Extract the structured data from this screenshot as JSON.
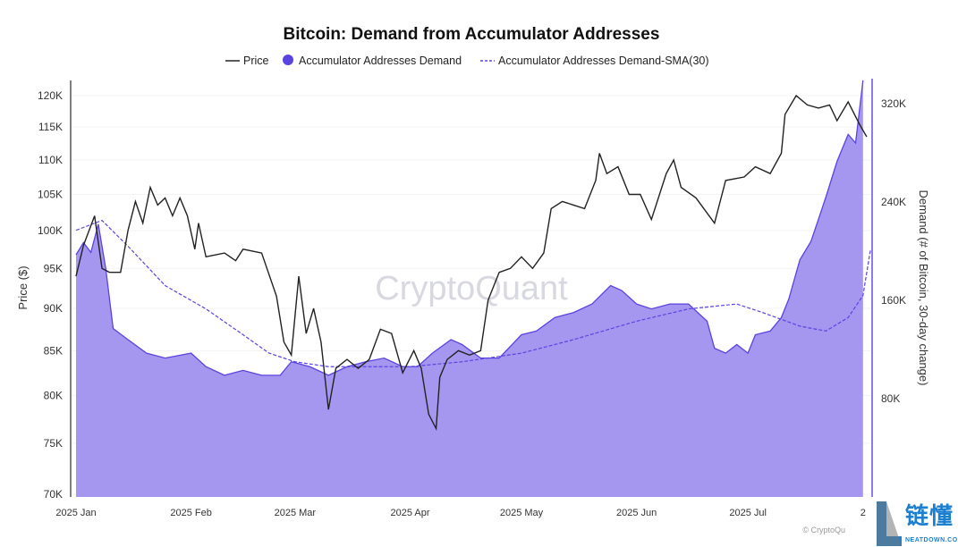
{
  "chart_data": {
    "type": "line",
    "title": "Bitcoin: Demand from Accumulator Addresses",
    "legend": [
      "Price",
      "Accumulator Addresses Demand",
      "Accumulator Addresses Demand-SMA(30)"
    ],
    "legend_position": "top",
    "ylabel_left": "Price ($)",
    "ylabel_right": "Demand (# of Bitcoin, 30-day change)",
    "y_left_scale": "log",
    "y_left_range": [
      70000,
      125000
    ],
    "y_left_ticks": [
      "120K",
      "115K",
      "110K",
      "105K",
      "100K",
      "95K",
      "90K",
      "85K",
      "80K",
      "75K",
      "70K"
    ],
    "y_left_tick_values": [
      120000,
      115000,
      110000,
      105000,
      100000,
      95000,
      90000,
      85000,
      80000,
      75000,
      70000
    ],
    "y_right_range": [
      0,
      340000
    ],
    "y_right_ticks": [
      "320K",
      "240K",
      "160K",
      "80K"
    ],
    "y_right_tick_values": [
      320000,
      240000,
      160000,
      80000
    ],
    "x_ticks": [
      "2025 Jan",
      "2025 Feb",
      "2025 Mar",
      "2025 Apr",
      "2025 May",
      "2025 Jun",
      "2025 Jul",
      "2"
    ],
    "x_tick_dates": [
      "2025-01-01",
      "2025-02-01",
      "2025-03-01",
      "2025-04-01",
      "2025-05-01",
      "2025-06-01",
      "2025-07-01",
      "2025-08-01"
    ],
    "colors": {
      "price": "#222222",
      "demand_fill": "#a597ef",
      "demand_line": "#5a44e0",
      "sma": "#5a44e0"
    },
    "watermark": "CryptoQuant",
    "credit": "© CryptoQu",
    "price": [
      [
        "2025-01-01",
        94000
      ],
      [
        "2025-01-03",
        98000
      ],
      [
        "2025-01-06",
        102000
      ],
      [
        "2025-01-08",
        95000
      ],
      [
        "2025-01-10",
        94500
      ],
      [
        "2025-01-13",
        94500
      ],
      [
        "2025-01-15",
        100000
      ],
      [
        "2025-01-17",
        104000
      ],
      [
        "2025-01-19",
        101000
      ],
      [
        "2025-01-21",
        106000
      ],
      [
        "2025-01-23",
        103500
      ],
      [
        "2025-01-25",
        104500
      ],
      [
        "2025-01-27",
        102000
      ],
      [
        "2025-01-29",
        104500
      ],
      [
        "2025-01-31",
        102000
      ],
      [
        "2025-02-02",
        97500
      ],
      [
        "2025-02-03",
        101000
      ],
      [
        "2025-02-05",
        96500
      ],
      [
        "2025-02-10",
        97000
      ],
      [
        "2025-02-13",
        96000
      ],
      [
        "2025-02-15",
        97500
      ],
      [
        "2025-02-20",
        97000
      ],
      [
        "2025-02-24",
        91500
      ],
      [
        "2025-02-26",
        86000
      ],
      [
        "2025-02-28",
        84500
      ],
      [
        "2025-03-02",
        94000
      ],
      [
        "2025-03-04",
        87000
      ],
      [
        "2025-03-06",
        90000
      ],
      [
        "2025-03-08",
        86000
      ],
      [
        "2025-03-10",
        78500
      ],
      [
        "2025-03-12",
        83000
      ],
      [
        "2025-03-15",
        84000
      ],
      [
        "2025-03-18",
        83000
      ],
      [
        "2025-03-21",
        84000
      ],
      [
        "2025-03-24",
        87500
      ],
      [
        "2025-03-27",
        87000
      ],
      [
        "2025-03-30",
        82500
      ],
      [
        "2025-04-02",
        85000
      ],
      [
        "2025-04-04",
        83000
      ],
      [
        "2025-04-06",
        78000
      ],
      [
        "2025-04-08",
        76500
      ],
      [
        "2025-04-09",
        82000
      ],
      [
        "2025-04-11",
        84000
      ],
      [
        "2025-04-14",
        85000
      ],
      [
        "2025-04-17",
        84500
      ],
      [
        "2025-04-20",
        85000
      ],
      [
        "2025-04-22",
        91000
      ],
      [
        "2025-04-25",
        94500
      ],
      [
        "2025-04-28",
        95000
      ],
      [
        "2025-05-01",
        96500
      ],
      [
        "2025-05-04",
        95000
      ],
      [
        "2025-05-07",
        97000
      ],
      [
        "2025-05-09",
        103000
      ],
      [
        "2025-05-12",
        104000
      ],
      [
        "2025-05-15",
        103500
      ],
      [
        "2025-05-18",
        103000
      ],
      [
        "2025-05-21",
        107000
      ],
      [
        "2025-05-22",
        111000
      ],
      [
        "2025-05-24",
        108000
      ],
      [
        "2025-05-27",
        109000
      ],
      [
        "2025-05-30",
        105000
      ],
      [
        "2025-06-02",
        105000
      ],
      [
        "2025-06-05",
        101500
      ],
      [
        "2025-06-09",
        108000
      ],
      [
        "2025-06-11",
        110000
      ],
      [
        "2025-06-13",
        106000
      ],
      [
        "2025-06-17",
        104500
      ],
      [
        "2025-06-22",
        101000
      ],
      [
        "2025-06-25",
        107000
      ],
      [
        "2025-06-30",
        107500
      ],
      [
        "2025-07-03",
        109000
      ],
      [
        "2025-07-07",
        108000
      ],
      [
        "2025-07-10",
        111000
      ],
      [
        "2025-07-11",
        117000
      ],
      [
        "2025-07-14",
        120000
      ],
      [
        "2025-07-17",
        118500
      ],
      [
        "2025-07-20",
        118000
      ],
      [
        "2025-07-23",
        118500
      ],
      [
        "2025-07-25",
        116000
      ],
      [
        "2025-07-28",
        119000
      ],
      [
        "2025-07-31",
        115500
      ],
      [
        "2025-08-02",
        113500
      ]
    ],
    "demand": [
      [
        "2025-01-01",
        197000
      ],
      [
        "2025-01-03",
        207000
      ],
      [
        "2025-01-05",
        199000
      ],
      [
        "2025-01-07",
        222000
      ],
      [
        "2025-01-09",
        186000
      ],
      [
        "2025-01-11",
        137000
      ],
      [
        "2025-01-15",
        128000
      ],
      [
        "2025-01-20",
        117000
      ],
      [
        "2025-01-25",
        113000
      ],
      [
        "2025-02-01",
        117000
      ],
      [
        "2025-02-05",
        106000
      ],
      [
        "2025-02-10",
        99000
      ],
      [
        "2025-02-15",
        103000
      ],
      [
        "2025-02-20",
        99000
      ],
      [
        "2025-02-25",
        99000
      ],
      [
        "2025-02-28",
        110000
      ],
      [
        "2025-03-05",
        106000
      ],
      [
        "2025-03-10",
        99000
      ],
      [
        "2025-03-15",
        106000
      ],
      [
        "2025-03-20",
        110000
      ],
      [
        "2025-03-25",
        113000
      ],
      [
        "2025-03-30",
        106000
      ],
      [
        "2025-04-03",
        106000
      ],
      [
        "2025-04-07",
        117000
      ],
      [
        "2025-04-12",
        128000
      ],
      [
        "2025-04-15",
        124000
      ],
      [
        "2025-04-20",
        113000
      ],
      [
        "2025-04-25",
        113000
      ],
      [
        "2025-05-01",
        132000
      ],
      [
        "2025-05-05",
        135000
      ],
      [
        "2025-05-10",
        146000
      ],
      [
        "2025-05-15",
        150000
      ],
      [
        "2025-05-20",
        157000
      ],
      [
        "2025-05-25",
        172000
      ],
      [
        "2025-05-28",
        168000
      ],
      [
        "2025-06-01",
        157000
      ],
      [
        "2025-06-05",
        153000
      ],
      [
        "2025-06-10",
        157000
      ],
      [
        "2025-06-15",
        157000
      ],
      [
        "2025-06-20",
        143000
      ],
      [
        "2025-06-22",
        121000
      ],
      [
        "2025-06-25",
        117000
      ],
      [
        "2025-06-28",
        124000
      ],
      [
        "2025-07-01",
        117000
      ],
      [
        "2025-07-03",
        132000
      ],
      [
        "2025-07-07",
        135000
      ],
      [
        "2025-07-10",
        146000
      ],
      [
        "2025-07-12",
        161000
      ],
      [
        "2025-07-15",
        193000
      ],
      [
        "2025-07-18",
        208000
      ],
      [
        "2025-07-22",
        244000
      ],
      [
        "2025-07-25",
        273000
      ],
      [
        "2025-07-28",
        295000
      ],
      [
        "2025-07-30",
        288000
      ],
      [
        "2025-08-01",
        339000
      ]
    ],
    "sma": [
      [
        "2025-01-01",
        217000
      ],
      [
        "2025-01-08",
        225000
      ],
      [
        "2025-01-15",
        204000
      ],
      [
        "2025-01-25",
        172000
      ],
      [
        "2025-02-05",
        153000
      ],
      [
        "2025-02-15",
        132000
      ],
      [
        "2025-02-22",
        117000
      ],
      [
        "2025-03-01",
        110000
      ],
      [
        "2025-03-10",
        106000
      ],
      [
        "2025-04-01",
        106000
      ],
      [
        "2025-04-15",
        110000
      ],
      [
        "2025-05-01",
        117000
      ],
      [
        "2025-05-15",
        128000
      ],
      [
        "2025-06-01",
        143000
      ],
      [
        "2025-06-15",
        153000
      ],
      [
        "2025-06-28",
        157000
      ],
      [
        "2025-07-05",
        150000
      ],
      [
        "2025-07-15",
        139000
      ],
      [
        "2025-07-22",
        135000
      ],
      [
        "2025-07-28",
        146000
      ],
      [
        "2025-08-01",
        164000
      ],
      [
        "2025-08-03",
        201000
      ]
    ]
  }
}
